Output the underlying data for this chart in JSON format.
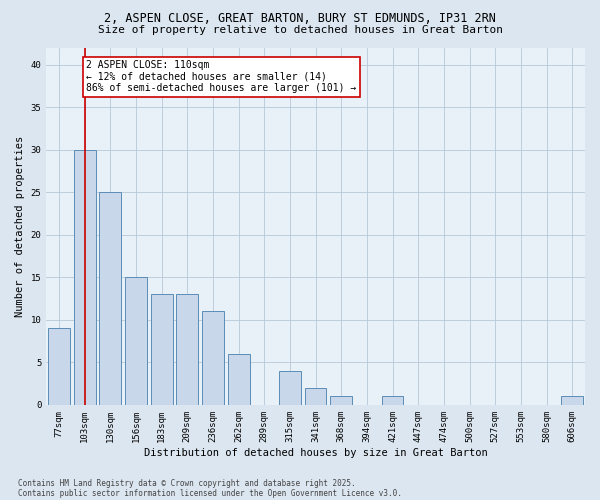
{
  "title1": "2, ASPEN CLOSE, GREAT BARTON, BURY ST EDMUNDS, IP31 2RN",
  "title2": "Size of property relative to detached houses in Great Barton",
  "xlabel": "Distribution of detached houses by size in Great Barton",
  "ylabel": "Number of detached properties",
  "categories": [
    "77sqm",
    "103sqm",
    "130sqm",
    "156sqm",
    "183sqm",
    "209sqm",
    "236sqm",
    "262sqm",
    "289sqm",
    "315sqm",
    "341sqm",
    "368sqm",
    "394sqm",
    "421sqm",
    "447sqm",
    "474sqm",
    "500sqm",
    "527sqm",
    "553sqm",
    "580sqm",
    "606sqm"
  ],
  "values": [
    9,
    30,
    25,
    15,
    13,
    13,
    11,
    6,
    0,
    4,
    2,
    1,
    0,
    1,
    0,
    0,
    0,
    0,
    0,
    0,
    1
  ],
  "bar_color": "#c8d8ea",
  "bar_edge_color": "#5b8db8",
  "vline_x": 1,
  "vline_color": "#cc0000",
  "annotation_text": "2 ASPEN CLOSE: 110sqm\n← 12% of detached houses are smaller (14)\n86% of semi-detached houses are larger (101) →",
  "annotation_box_color": "#ffffff",
  "annotation_box_edge": "#cc0000",
  "ylim": [
    0,
    42
  ],
  "yticks": [
    0,
    5,
    10,
    15,
    20,
    25,
    30,
    35,
    40
  ],
  "footnote1": "Contains HM Land Registry data © Crown copyright and database right 2025.",
  "footnote2": "Contains public sector information licensed under the Open Government Licence v3.0.",
  "bg_color": "#dce6f0",
  "plot_bg_color": "#e8f0f8",
  "grid_color": "#b8c8d8",
  "title_fontsize": 8.5,
  "subtitle_fontsize": 8.0,
  "tick_fontsize": 6.5,
  "label_fontsize": 7.5,
  "annot_fontsize": 7.0,
  "footnote_fontsize": 5.5
}
